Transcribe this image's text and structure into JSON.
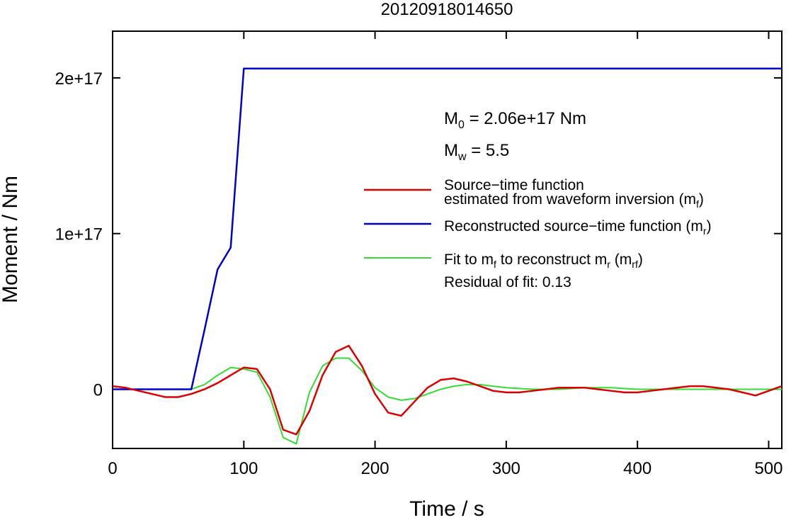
{
  "chart_data": {
    "type": "line",
    "title": "20120918014650",
    "xlabel": "Time / s",
    "ylabel": "Moment / Nm",
    "xlim": [
      0,
      510
    ],
    "ylim": [
      -3.8e+16,
      2.3e+17
    ],
    "x_ticks": [
      0,
      100,
      200,
      300,
      400,
      500
    ],
    "x_tick_labels": [
      "0",
      "100",
      "200",
      "300",
      "400",
      "500"
    ],
    "y_ticks": [
      0,
      1e+17,
      2e+17
    ],
    "y_tick_labels": [
      "0",
      "1e+17",
      "2e+17"
    ],
    "grid": false,
    "legend_position": "right",
    "annotations": {
      "m0": {
        "symbol": "M",
        "sub": "0",
        "rest": " = 2.06e+17 Nm"
      },
      "mw": {
        "symbol": "M",
        "sub": "w",
        "rest": " = 5.5"
      },
      "residual": "Residual of fit: 0.13"
    },
    "series": [
      {
        "name": "Source−time function estimated from waveform inversion (m_f)",
        "legend_line1": "Source−time function",
        "legend_line2_pre": "estimated from waveform inversion (m",
        "legend_line2_sub": "f",
        "legend_line2_post": ")",
        "color": "#dd0000",
        "x": [
          0,
          10,
          20,
          30,
          40,
          50,
          60,
          70,
          80,
          90,
          100,
          110,
          120,
          130,
          140,
          150,
          160,
          170,
          180,
          190,
          200,
          210,
          220,
          230,
          240,
          250,
          260,
          270,
          280,
          290,
          300,
          310,
          320,
          330,
          340,
          350,
          360,
          370,
          380,
          390,
          400,
          410,
          420,
          430,
          440,
          450,
          460,
          470,
          480,
          490,
          500,
          510
        ],
        "values": [
          2000000000000000.0,
          1000000000000000.0,
          -1000000000000000.0,
          -3000000000000000.0,
          -5000000000000000.0,
          -5000000000000000.0,
          -3000000000000000.0,
          0,
          4000000000000000.0,
          9000000000000000.0,
          1.4e+16,
          1.3e+16,
          0,
          -2.6e+16,
          -2.9e+16,
          -1.4e+16,
          9000000000000000.0,
          2.4e+16,
          2.8e+16,
          1.5e+16,
          -3000000000000000.0,
          -1.5e+16,
          -1.7e+16,
          -8000000000000000.0,
          1000000000000000.0,
          6000000000000000.0,
          7000000000000000.0,
          5000000000000000.0,
          2000000000000000.0,
          -1000000000000000.0,
          -2000000000000000.0,
          -2000000000000000.0,
          -1000000000000000.0,
          0,
          1000000000000000.0,
          1000000000000000.0,
          1000000000000000.0,
          0,
          -1000000000000000.0,
          -2000000000000000.0,
          -2000000000000000.0,
          -1000000000000000.0,
          0,
          1000000000000000.0,
          2000000000000000.0,
          2000000000000000.0,
          1000000000000000.0,
          0,
          -2000000000000000.0,
          -4000000000000000.0,
          -1000000000000000.0,
          2000000000000000.0
        ]
      },
      {
        "name": "Reconstructed source−time function (m_r)",
        "legend_pre": "Reconstructed source−time function (m",
        "legend_sub": "r",
        "legend_post": ")",
        "color": "#0000cc",
        "x": [
          0,
          60,
          70,
          80,
          90,
          100,
          510
        ],
        "values": [
          0,
          0,
          3.8e+16,
          7.7e+16,
          9.1e+16,
          2.06e+17,
          2.06e+17
        ]
      },
      {
        "name": "Fit to m_f to reconstruct m_r (m_rf)",
        "legend_pre": "Fit to m",
        "legend_sub1": "f",
        "legend_mid": " to reconstruct m",
        "legend_sub2": "r",
        "legend_mid2": " (m",
        "legend_sub3": "rf",
        "legend_post": ")",
        "color": "#33dd33",
        "x": [
          0,
          10,
          20,
          30,
          40,
          50,
          60,
          70,
          80,
          90,
          100,
          110,
          120,
          130,
          140,
          150,
          160,
          170,
          180,
          190,
          200,
          210,
          220,
          230,
          240,
          250,
          260,
          270,
          280,
          290,
          300,
          320,
          340,
          360,
          380,
          400,
          420,
          440,
          460,
          480,
          500,
          510
        ],
        "values": [
          0,
          0,
          0,
          0,
          0,
          0,
          0,
          3000000000000000.0,
          9000000000000000.0,
          1.4e+16,
          1.3e+16,
          1.1e+16,
          -5000000000000000.0,
          -3.1e+16,
          -3.5e+16,
          -2000000000000000.0,
          1.5e+16,
          2e+16,
          2e+16,
          1.2e+16,
          1000000000000000.0,
          -5000000000000000.0,
          -7000000000000000.0,
          -6000000000000000.0,
          -3000000000000000.0,
          0,
          2000000000000000.0,
          3000000000000000.0,
          3000000000000000.0,
          2000000000000000.0,
          1000000000000000.0,
          0,
          0,
          1000000000000000.0,
          1000000000000000.0,
          0,
          0,
          0,
          0,
          0,
          0,
          0
        ]
      }
    ]
  }
}
